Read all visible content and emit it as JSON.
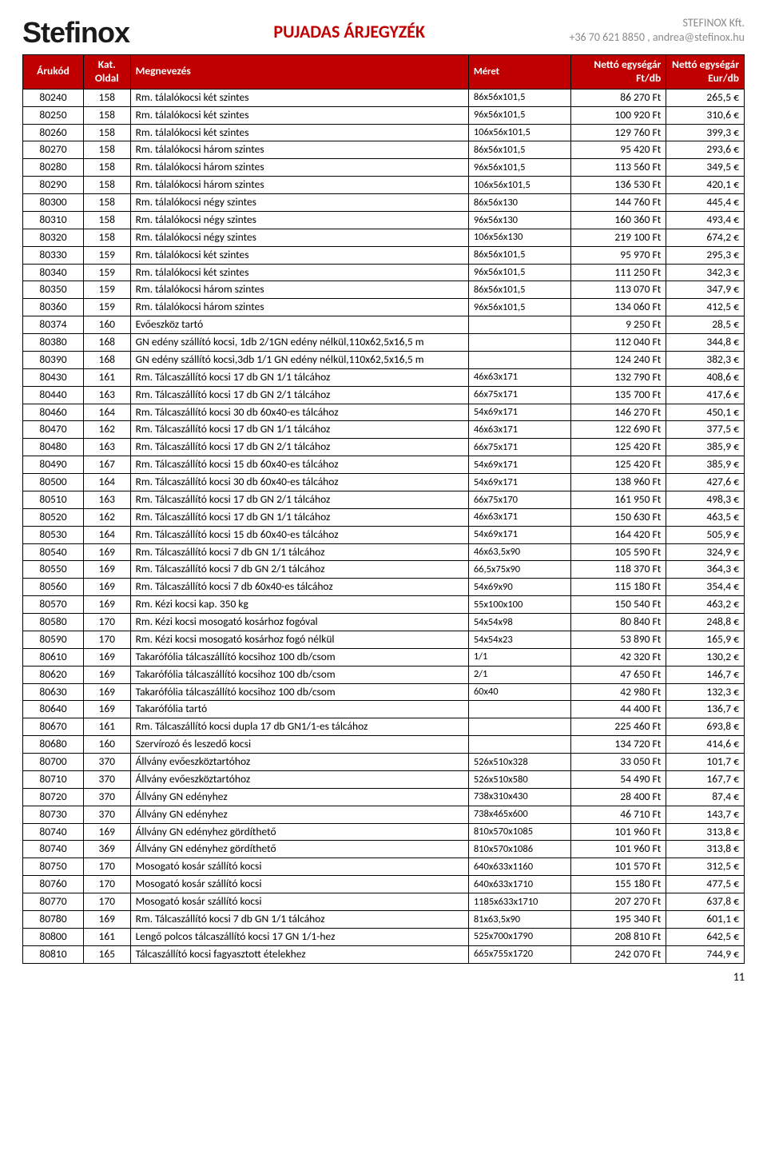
{
  "header": {
    "logo": "Stefinox",
    "title": "PUJADAS ÁRJEGYZÉK",
    "company": "STEFINOX Kft.",
    "contact": "+36 70 621 8850 , andrea@stefinox.hu"
  },
  "columns": {
    "arukod": "Árukód",
    "kat": "Kat. Oldal",
    "megnevezes": "Megnevezés",
    "meret": "Méret",
    "ft": "Nettó egységár Ft/db",
    "eur": "Nettó egységár Eur/db"
  },
  "rows": [
    {
      "arukod": "80240",
      "kat": "158",
      "megn": "Rm. tálalókocsi két szintes",
      "meret": "86x56x101,5",
      "ft": "86 270 Ft",
      "eur": "265,5 €"
    },
    {
      "arukod": "80250",
      "kat": "158",
      "megn": "Rm. tálalókocsi két szintes",
      "meret": "96x56x101,5",
      "ft": "100 920 Ft",
      "eur": "310,6 €"
    },
    {
      "arukod": "80260",
      "kat": "158",
      "megn": "Rm. tálalókocsi két szintes",
      "meret": "106x56x101,5",
      "ft": "129 760 Ft",
      "eur": "399,3 €"
    },
    {
      "arukod": "80270",
      "kat": "158",
      "megn": "Rm. tálalókocsi három szintes",
      "meret": "86x56x101,5",
      "ft": "95 420 Ft",
      "eur": "293,6 €"
    },
    {
      "arukod": "80280",
      "kat": "158",
      "megn": "Rm. tálalókocsi három szintes",
      "meret": "96x56x101,5",
      "ft": "113 560 Ft",
      "eur": "349,5 €"
    },
    {
      "arukod": "80290",
      "kat": "158",
      "megn": "Rm. tálalókocsi három szintes",
      "meret": "106x56x101,5",
      "ft": "136 530 Ft",
      "eur": "420,1 €"
    },
    {
      "arukod": "80300",
      "kat": "158",
      "megn": "Rm. tálalókocsi négy szintes",
      "meret": "86x56x130",
      "ft": "144 760 Ft",
      "eur": "445,4 €"
    },
    {
      "arukod": "80310",
      "kat": "158",
      "megn": "Rm. tálalókocsi négy szintes",
      "meret": "96x56x130",
      "ft": "160 360 Ft",
      "eur": "493,4 €"
    },
    {
      "arukod": "80320",
      "kat": "158",
      "megn": "Rm. tálalókocsi négy szintes",
      "meret": "106x56x130",
      "ft": "219 100 Ft",
      "eur": "674,2 €"
    },
    {
      "arukod": "80330",
      "kat": "159",
      "megn": "Rm. tálalókocsi két szintes",
      "meret": "86x56x101,5",
      "ft": "95 970 Ft",
      "eur": "295,3 €"
    },
    {
      "arukod": "80340",
      "kat": "159",
      "megn": "Rm. tálalókocsi két szintes",
      "meret": "96x56x101,5",
      "ft": "111 250 Ft",
      "eur": "342,3 €"
    },
    {
      "arukod": "80350",
      "kat": "159",
      "megn": "Rm. tálalókocsi három szintes",
      "meret": "86x56x101,5",
      "ft": "113 070 Ft",
      "eur": "347,9 €"
    },
    {
      "arukod": "80360",
      "kat": "159",
      "megn": "Rm. tálalókocsi három szintes",
      "meret": "96x56x101,5",
      "ft": "134 060 Ft",
      "eur": "412,5 €"
    },
    {
      "arukod": "80374",
      "kat": "160",
      "megn": "Evőeszköz tartó",
      "meret": "",
      "ft": "9 250 Ft",
      "eur": "28,5 €"
    },
    {
      "arukod": "80380",
      "kat": "168",
      "megn": "GN edény szállító kocsi, 1db 2/1GN edény nélkül,110x62,5x16,5 m",
      "meret": "",
      "ft": "112 040 Ft",
      "eur": "344,8 €"
    },
    {
      "arukod": "80390",
      "kat": "168",
      "megn": "GN edény szállító kocsi,3db 1/1 GN edény nélkül,110x62,5x16,5 m",
      "meret": "",
      "ft": "124 240 Ft",
      "eur": "382,3 €"
    },
    {
      "arukod": "80430",
      "kat": "161",
      "megn": "Rm. Tálcaszállító kocsi 17 db GN 1/1 tálcához",
      "meret": "46x63x171",
      "ft": "132 790 Ft",
      "eur": "408,6 €"
    },
    {
      "arukod": "80440",
      "kat": "163",
      "megn": "Rm. Tálcaszállító kocsi 17 db GN 2/1 tálcához",
      "meret": "66x75x171",
      "ft": "135 700 Ft",
      "eur": "417,6 €"
    },
    {
      "arukod": "80460",
      "kat": "164",
      "megn": "Rm. Tálcaszállító kocsi 30 db 60x40-es tálcához",
      "meret": "54x69x171",
      "ft": "146 270 Ft",
      "eur": "450,1 €"
    },
    {
      "arukod": "80470",
      "kat": "162",
      "megn": "Rm. Tálcaszállító kocsi 17 db GN 1/1 tálcához",
      "meret": "46x63x171",
      "ft": "122 690 Ft",
      "eur": "377,5 €"
    },
    {
      "arukod": "80480",
      "kat": "163",
      "megn": "Rm. Tálcaszállító kocsi 17 db GN 2/1 tálcához",
      "meret": "66x75x171",
      "ft": "125 420 Ft",
      "eur": "385,9 €"
    },
    {
      "arukod": "80490",
      "kat": "167",
      "megn": "Rm. Tálcaszállító kocsi 15 db 60x40-es tálcához",
      "meret": "54x69x171",
      "ft": "125 420 Ft",
      "eur": "385,9 €"
    },
    {
      "arukod": "80500",
      "kat": "164",
      "megn": "Rm. Tálcaszállító kocsi 30 db 60x40-es tálcához",
      "meret": "54x69x171",
      "ft": "138 960 Ft",
      "eur": "427,6 €"
    },
    {
      "arukod": "80510",
      "kat": "163",
      "megn": "Rm. Tálcaszállító kocsi 17 db GN 2/1 tálcához",
      "meret": "66x75x170",
      "ft": "161 950 Ft",
      "eur": "498,3 €"
    },
    {
      "arukod": "80520",
      "kat": "162",
      "megn": "Rm. Tálcaszállító kocsi 17 db GN 1/1 tálcához",
      "meret": "46x63x171",
      "ft": "150 630 Ft",
      "eur": "463,5 €"
    },
    {
      "arukod": "80530",
      "kat": "164",
      "megn": "Rm. Tálcaszállító kocsi 15 db 60x40-es tálcához",
      "meret": "54x69x171",
      "ft": "164 420 Ft",
      "eur": "505,9 €"
    },
    {
      "arukod": "80540",
      "kat": "169",
      "megn": "Rm. Tálcaszállító kocsi 7 db GN 1/1 tálcához",
      "meret": "46x63,5x90",
      "ft": "105 590 Ft",
      "eur": "324,9 €"
    },
    {
      "arukod": "80550",
      "kat": "169",
      "megn": "Rm. Tálcaszállító kocsi 7 db GN 2/1 tálcához",
      "meret": "66,5x75x90",
      "ft": "118 370 Ft",
      "eur": "364,3 €"
    },
    {
      "arukod": "80560",
      "kat": "169",
      "megn": "Rm. Tálcaszállító kocsi 7 db 60x40-es tálcához",
      "meret": "54x69x90",
      "ft": "115 180 Ft",
      "eur": "354,4 €"
    },
    {
      "arukod": "80570",
      "kat": "169",
      "megn": "Rm. Kézi kocsi kap. 350 kg",
      "meret": "55x100x100",
      "ft": "150 540 Ft",
      "eur": "463,2 €"
    },
    {
      "arukod": "80580",
      "kat": "170",
      "megn": "Rm. Kézi kocsi mosogató kosárhoz fogóval",
      "meret": "54x54x98",
      "ft": "80 840 Ft",
      "eur": "248,8 €"
    },
    {
      "arukod": "80590",
      "kat": "170",
      "megn": "Rm. Kézi kocsi mosogató kosárhoz fogó nélkül",
      "meret": "54x54x23",
      "ft": "53 890 Ft",
      "eur": "165,9 €"
    },
    {
      "arukod": "80610",
      "kat": "169",
      "megn": "Takarófólia tálcaszállító kocsihoz 100 db/csom",
      "meret": "1/1",
      "ft": "42 320 Ft",
      "eur": "130,2 €"
    },
    {
      "arukod": "80620",
      "kat": "169",
      "megn": "Takarófólia tálcaszállító kocsihoz 100 db/csom",
      "meret": "2/1",
      "ft": "47 650 Ft",
      "eur": "146,7 €"
    },
    {
      "arukod": "80630",
      "kat": "169",
      "megn": "Takarófólia tálcaszállító kocsihoz 100 db/csom",
      "meret": "60x40",
      "ft": "42 980 Ft",
      "eur": "132,3 €"
    },
    {
      "arukod": "80640",
      "kat": "169",
      "megn": "Takarófólia tartó",
      "meret": "",
      "ft": "44 400 Ft",
      "eur": "136,7 €"
    },
    {
      "arukod": "80670",
      "kat": "161",
      "megn": "Rm. Tálcaszállító kocsi dupla 17 db GN1/1-es tálcához",
      "meret": "",
      "ft": "225 460 Ft",
      "eur": "693,8 €"
    },
    {
      "arukod": "80680",
      "kat": "160",
      "megn": "Szervírozó és leszedő kocsi",
      "meret": "",
      "ft": "134 720 Ft",
      "eur": "414,6 €"
    },
    {
      "arukod": "80700",
      "kat": "370",
      "megn": "Állvány evőeszköztartóhoz",
      "meret": "526x510x328",
      "ft": "33 050 Ft",
      "eur": "101,7 €"
    },
    {
      "arukod": "80710",
      "kat": "370",
      "megn": "Állvány evőeszköztartóhoz",
      "meret": "526x510x580",
      "ft": "54 490 Ft",
      "eur": "167,7 €"
    },
    {
      "arukod": "80720",
      "kat": "370",
      "megn": "Állvány GN edényhez",
      "meret": "738x310x430",
      "ft": "28 400 Ft",
      "eur": "87,4 €"
    },
    {
      "arukod": "80730",
      "kat": "370",
      "megn": "Állvány GN edényhez",
      "meret": "738x465x600",
      "ft": "46 710 Ft",
      "eur": "143,7 €"
    },
    {
      "arukod": "80740",
      "kat": "169",
      "megn": "Állvány GN edényhez gördíthető",
      "meret": "810x570x1085",
      "ft": "101 960 Ft",
      "eur": "313,8 €"
    },
    {
      "arukod": "80740",
      "kat": "369",
      "megn": "Állvány GN edényhez gördíthető",
      "meret": "810x570x1086",
      "ft": "101 960 Ft",
      "eur": "313,8 €"
    },
    {
      "arukod": "80750",
      "kat": "170",
      "megn": "Mosogató kosár szállító kocsi",
      "meret": "640x633x1160",
      "ft": "101 570 Ft",
      "eur": "312,5 €"
    },
    {
      "arukod": "80760",
      "kat": "170",
      "megn": "Mosogató kosár szállító kocsi",
      "meret": "640x633x1710",
      "ft": "155 180 Ft",
      "eur": "477,5 €"
    },
    {
      "arukod": "80770",
      "kat": "170",
      "megn": "Mosogató kosár szállító kocsi",
      "meret": "1185x633x1710",
      "ft": "207 270 Ft",
      "eur": "637,8 €"
    },
    {
      "arukod": "80780",
      "kat": "169",
      "megn": "Rm. Tálcaszállító kocsi 7 db GN 1/1 tálcához",
      "meret": "81x63,5x90",
      "ft": "195 340 Ft",
      "eur": "601,1 €"
    },
    {
      "arukod": "80800",
      "kat": "161",
      "megn": "Lengő polcos tálcaszállító kocsi 17 GN 1/1-hez",
      "meret": "525x700x1790",
      "ft": "208 810 Ft",
      "eur": "642,5 €"
    },
    {
      "arukod": "80810",
      "kat": "165",
      "megn": "Tálcaszállító kocsi fagyasztott ételekhez",
      "meret": "665x755x1720",
      "ft": "242 070 Ft",
      "eur": "744,9 €"
    }
  ],
  "pagenum": "11"
}
